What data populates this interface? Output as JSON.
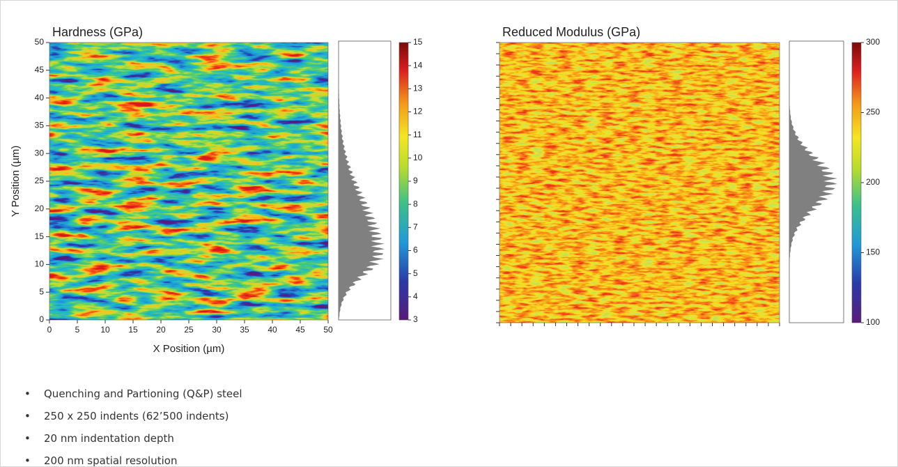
{
  "chart_data": [
    {
      "type": "heatmap",
      "title": "Hardness (GPa)",
      "x_label": "X Position (µm)",
      "y_label": "Y Position (µm)",
      "xlim": [
        0,
        50
      ],
      "ylim": [
        0,
        50
      ],
      "xticks": [
        0,
        5,
        10,
        15,
        20,
        25,
        30,
        35,
        40,
        45,
        50
      ],
      "yticks": [
        0,
        5,
        10,
        15,
        20,
        25,
        30,
        35,
        40,
        45,
        50
      ],
      "clim": [
        3,
        15
      ],
      "cticks": [
        3,
        4,
        5,
        6,
        7,
        8,
        9,
        10,
        11,
        12,
        13,
        14,
        15
      ]
    },
    {
      "type": "heatmap",
      "title": "Reduced Modulus (GPa)",
      "clim": [
        100,
        300
      ],
      "cticks": [
        100,
        150,
        200,
        250,
        300
      ]
    }
  ],
  "notes": [
    "Quenching and Partioning (Q&P) steel",
    "250 x  250 indents (62’500 indents)",
    "20 nm indentation depth",
    "200 nm spatial resolution"
  ]
}
